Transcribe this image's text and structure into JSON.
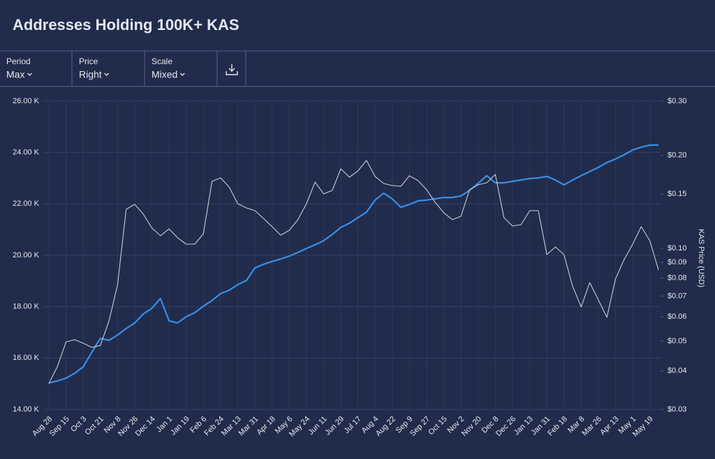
{
  "chart_data": {
    "type": "line",
    "title": "Addresses Holding 100K+ KAS",
    "y2label": "KAS Price (USD)",
    "categories": [
      "Aug 28",
      null,
      "Sep 15",
      null,
      "Oct 3",
      null,
      "Oct 21",
      null,
      "Nov 8",
      null,
      "Nov 26",
      null,
      "Dec 14",
      null,
      "Jan 1",
      null,
      "Jan 19",
      null,
      "Feb 6",
      null,
      "Feb 24",
      null,
      "Mar 13",
      null,
      "Mar 31",
      null,
      "Apr 18",
      null,
      "May 6",
      null,
      "May 24",
      null,
      "Jun 11",
      null,
      "Jun 29",
      null,
      "Jul 17",
      null,
      "Aug 4",
      null,
      "Aug 22",
      null,
      "Sep 9",
      null,
      "Sep 27",
      null,
      "Oct 15",
      null,
      "Nov 2",
      null,
      "Nov 20",
      null,
      "Dec 8",
      null,
      "Dec 26",
      null,
      "Jan 13",
      null,
      "Jan 31",
      null,
      "Feb 18",
      null,
      "Mar 8",
      null,
      "Mar 26",
      null,
      "Apr 13",
      null,
      "May 1",
      null,
      "May 19",
      null
    ],
    "series": [
      {
        "color": "#3a8ee6",
        "axis": "y",
        "values": [
          15030,
          15110,
          15220,
          15410,
          15660,
          16230,
          16770,
          16690,
          16900,
          17150,
          17370,
          17720,
          17940,
          18320,
          17450,
          17370,
          17610,
          17770,
          18020,
          18240,
          18510,
          18640,
          18860,
          19020,
          19510,
          19650,
          19760,
          19860,
          19970,
          20110,
          20270,
          20410,
          20570,
          20810,
          21090,
          21250,
          21470,
          21680,
          22150,
          22420,
          22200,
          21870,
          21980,
          22120,
          22150,
          22200,
          22250,
          22250,
          22310,
          22530,
          22800,
          23100,
          22820,
          22820,
          22880,
          22930,
          22990,
          23010,
          23070,
          22930,
          22740,
          22930,
          23100,
          23260,
          23420,
          23610,
          23750,
          23910,
          24100,
          24210,
          24290,
          24290
        ]
      },
      {
        "color": "#c9ccd6",
        "axis": "y2",
        "values": [
          0.0364,
          0.0414,
          0.0497,
          0.0505,
          0.0492,
          0.0477,
          0.0484,
          0.0581,
          0.0762,
          0.1338,
          0.1388,
          0.129,
          0.1163,
          0.1098,
          0.1156,
          0.1081,
          0.1031,
          0.1031,
          0.1115,
          0.1648,
          0.1692,
          0.158,
          0.1395,
          0.1352,
          0.1324,
          0.125,
          0.1175,
          0.1103,
          0.1144,
          0.1238,
          0.1395,
          0.164,
          0.1501,
          0.154,
          0.181,
          0.17,
          0.1782,
          0.1927,
          0.1709,
          0.1622,
          0.1597,
          0.1589,
          0.1718,
          0.1657,
          0.1548,
          0.1409,
          0.1304,
          0.1238,
          0.127,
          0.1548,
          0.1606,
          0.1631,
          0.1736,
          0.1257,
          0.1181,
          0.1193,
          0.1324,
          0.1324,
          0.0954,
          0.101,
          0.0954,
          0.0754,
          0.0645,
          0.0774,
          0.068,
          0.0597,
          0.0795,
          0.0919,
          0.1031,
          0.1175,
          0.1058,
          0.0851
        ]
      }
    ],
    "ylim": [
      14000,
      26000
    ],
    "yticks": [
      {
        "value": 14000,
        "label": "14.00 K"
      },
      {
        "value": 16000,
        "label": "16.00 K"
      },
      {
        "value": 18000,
        "label": "18.00 K"
      },
      {
        "value": 20000,
        "label": "20.00 K"
      },
      {
        "value": 22000,
        "label": "22.00 K"
      },
      {
        "value": 24000,
        "label": "24.00 K"
      },
      {
        "value": 26000,
        "label": "26.00 K"
      }
    ],
    "y2lim": [
      0.03,
      0.3
    ],
    "y2scale": "log",
    "y2ticks": [
      {
        "value": 0.03,
        "label": "$0.03"
      },
      {
        "value": 0.04,
        "label": "$0.04"
      },
      {
        "value": 0.05,
        "label": "$0.05"
      },
      {
        "value": 0.06,
        "label": "$0.06"
      },
      {
        "value": 0.07,
        "label": "$0.07"
      },
      {
        "value": 0.08,
        "label": "$0.08"
      },
      {
        "value": 0.09,
        "label": "$0.09"
      },
      {
        "value": 0.1,
        "label": "$0.10"
      },
      {
        "value": 0.15,
        "label": "$0.15"
      },
      {
        "value": 0.2,
        "label": "$0.20"
      },
      {
        "value": 0.3,
        "label": "$0.30"
      }
    ],
    "grid": true
  },
  "controls": [
    {
      "label": "Period",
      "value": "Max"
    },
    {
      "label": "Price",
      "value": "Right"
    },
    {
      "label": "Scale",
      "value": "Mixed"
    }
  ]
}
